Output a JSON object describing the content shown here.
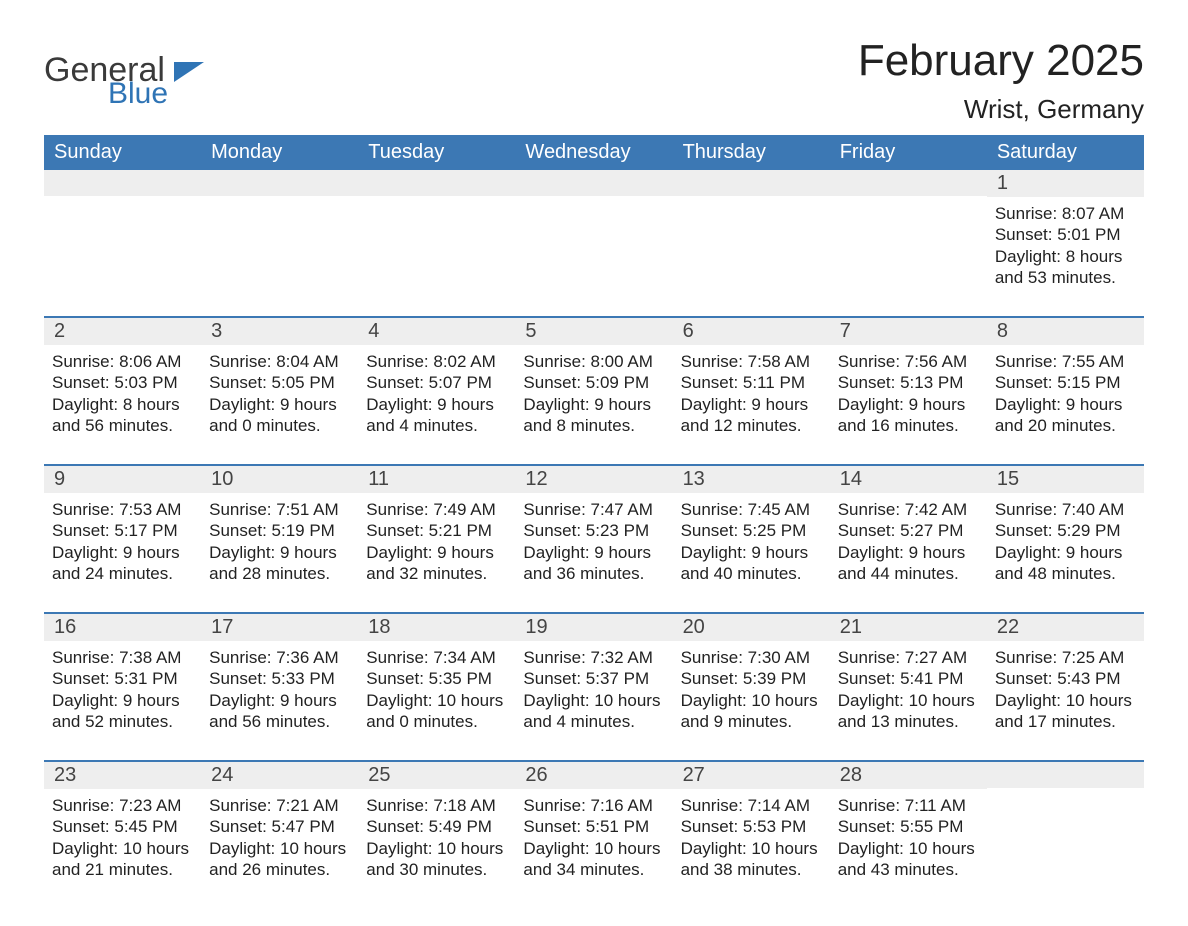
{
  "logo": {
    "general": "General",
    "blue": "Blue"
  },
  "title": "February 2025",
  "location": "Wrist, Germany",
  "colors": {
    "header_bg": "#3c78b4",
    "header_fg": "#ffffff",
    "rule": "#3c78b4",
    "datenum_bg": "#eeeeee",
    "text": "#222222",
    "logo_blue": "#2f74b5"
  },
  "day_names": [
    "Sunday",
    "Monday",
    "Tuesday",
    "Wednesday",
    "Thursday",
    "Friday",
    "Saturday"
  ],
  "weeks": [
    [
      {},
      {},
      {},
      {},
      {},
      {},
      {
        "n": "1",
        "sr": "Sunrise: 8:07 AM",
        "ss": "Sunset: 5:01 PM",
        "d1": "Daylight: 8 hours",
        "d2": "and 53 minutes."
      }
    ],
    [
      {
        "n": "2",
        "sr": "Sunrise: 8:06 AM",
        "ss": "Sunset: 5:03 PM",
        "d1": "Daylight: 8 hours",
        "d2": "and 56 minutes."
      },
      {
        "n": "3",
        "sr": "Sunrise: 8:04 AM",
        "ss": "Sunset: 5:05 PM",
        "d1": "Daylight: 9 hours",
        "d2": "and 0 minutes."
      },
      {
        "n": "4",
        "sr": "Sunrise: 8:02 AM",
        "ss": "Sunset: 5:07 PM",
        "d1": "Daylight: 9 hours",
        "d2": "and 4 minutes."
      },
      {
        "n": "5",
        "sr": "Sunrise: 8:00 AM",
        "ss": "Sunset: 5:09 PM",
        "d1": "Daylight: 9 hours",
        "d2": "and 8 minutes."
      },
      {
        "n": "6",
        "sr": "Sunrise: 7:58 AM",
        "ss": "Sunset: 5:11 PM",
        "d1": "Daylight: 9 hours",
        "d2": "and 12 minutes."
      },
      {
        "n": "7",
        "sr": "Sunrise: 7:56 AM",
        "ss": "Sunset: 5:13 PM",
        "d1": "Daylight: 9 hours",
        "d2": "and 16 minutes."
      },
      {
        "n": "8",
        "sr": "Sunrise: 7:55 AM",
        "ss": "Sunset: 5:15 PM",
        "d1": "Daylight: 9 hours",
        "d2": "and 20 minutes."
      }
    ],
    [
      {
        "n": "9",
        "sr": "Sunrise: 7:53 AM",
        "ss": "Sunset: 5:17 PM",
        "d1": "Daylight: 9 hours",
        "d2": "and 24 minutes."
      },
      {
        "n": "10",
        "sr": "Sunrise: 7:51 AM",
        "ss": "Sunset: 5:19 PM",
        "d1": "Daylight: 9 hours",
        "d2": "and 28 minutes."
      },
      {
        "n": "11",
        "sr": "Sunrise: 7:49 AM",
        "ss": "Sunset: 5:21 PM",
        "d1": "Daylight: 9 hours",
        "d2": "and 32 minutes."
      },
      {
        "n": "12",
        "sr": "Sunrise: 7:47 AM",
        "ss": "Sunset: 5:23 PM",
        "d1": "Daylight: 9 hours",
        "d2": "and 36 minutes."
      },
      {
        "n": "13",
        "sr": "Sunrise: 7:45 AM",
        "ss": "Sunset: 5:25 PM",
        "d1": "Daylight: 9 hours",
        "d2": "and 40 minutes."
      },
      {
        "n": "14",
        "sr": "Sunrise: 7:42 AM",
        "ss": "Sunset: 5:27 PM",
        "d1": "Daylight: 9 hours",
        "d2": "and 44 minutes."
      },
      {
        "n": "15",
        "sr": "Sunrise: 7:40 AM",
        "ss": "Sunset: 5:29 PM",
        "d1": "Daylight: 9 hours",
        "d2": "and 48 minutes."
      }
    ],
    [
      {
        "n": "16",
        "sr": "Sunrise: 7:38 AM",
        "ss": "Sunset: 5:31 PM",
        "d1": "Daylight: 9 hours",
        "d2": "and 52 minutes."
      },
      {
        "n": "17",
        "sr": "Sunrise: 7:36 AM",
        "ss": "Sunset: 5:33 PM",
        "d1": "Daylight: 9 hours",
        "d2": "and 56 minutes."
      },
      {
        "n": "18",
        "sr": "Sunrise: 7:34 AM",
        "ss": "Sunset: 5:35 PM",
        "d1": "Daylight: 10 hours",
        "d2": "and 0 minutes."
      },
      {
        "n": "19",
        "sr": "Sunrise: 7:32 AM",
        "ss": "Sunset: 5:37 PM",
        "d1": "Daylight: 10 hours",
        "d2": "and 4 minutes."
      },
      {
        "n": "20",
        "sr": "Sunrise: 7:30 AM",
        "ss": "Sunset: 5:39 PM",
        "d1": "Daylight: 10 hours",
        "d2": "and 9 minutes."
      },
      {
        "n": "21",
        "sr": "Sunrise: 7:27 AM",
        "ss": "Sunset: 5:41 PM",
        "d1": "Daylight: 10 hours",
        "d2": "and 13 minutes."
      },
      {
        "n": "22",
        "sr": "Sunrise: 7:25 AM",
        "ss": "Sunset: 5:43 PM",
        "d1": "Daylight: 10 hours",
        "d2": "and 17 minutes."
      }
    ],
    [
      {
        "n": "23",
        "sr": "Sunrise: 7:23 AM",
        "ss": "Sunset: 5:45 PM",
        "d1": "Daylight: 10 hours",
        "d2": "and 21 minutes."
      },
      {
        "n": "24",
        "sr": "Sunrise: 7:21 AM",
        "ss": "Sunset: 5:47 PM",
        "d1": "Daylight: 10 hours",
        "d2": "and 26 minutes."
      },
      {
        "n": "25",
        "sr": "Sunrise: 7:18 AM",
        "ss": "Sunset: 5:49 PM",
        "d1": "Daylight: 10 hours",
        "d2": "and 30 minutes."
      },
      {
        "n": "26",
        "sr": "Sunrise: 7:16 AM",
        "ss": "Sunset: 5:51 PM",
        "d1": "Daylight: 10 hours",
        "d2": "and 34 minutes."
      },
      {
        "n": "27",
        "sr": "Sunrise: 7:14 AM",
        "ss": "Sunset: 5:53 PM",
        "d1": "Daylight: 10 hours",
        "d2": "and 38 minutes."
      },
      {
        "n": "28",
        "sr": "Sunrise: 7:11 AM",
        "ss": "Sunset: 5:55 PM",
        "d1": "Daylight: 10 hours",
        "d2": "and 43 minutes."
      },
      {}
    ]
  ]
}
